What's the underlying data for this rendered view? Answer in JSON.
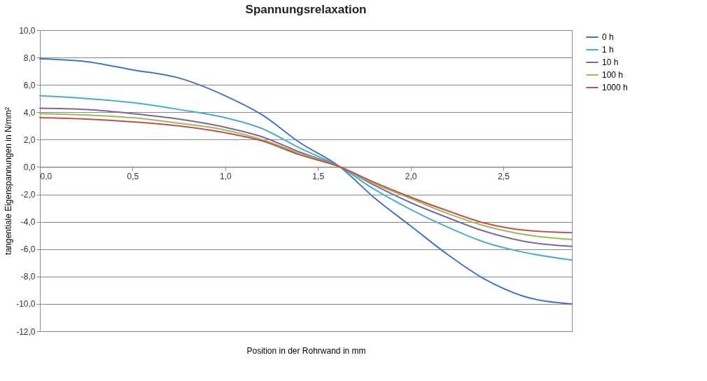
{
  "chart_data": {
    "type": "line",
    "title": "Spannungsrelaxation",
    "xlabel": "Position in der Rohrwand  in mm",
    "ylabel": "tangentiale Eigenspannungen  in N/mm²",
    "x": [
      0,
      0.25,
      0.5,
      0.75,
      1.0,
      1.2,
      1.4,
      1.62,
      1.8,
      2.0,
      2.2,
      2.4,
      2.6,
      2.87
    ],
    "series": [
      {
        "name": "0 h",
        "color": "#4472c4",
        "values": [
          7.9,
          7.7,
          7.1,
          6.5,
          5.2,
          3.8,
          1.8,
          0,
          -2.2,
          -4.3,
          -6.4,
          -8.2,
          -9.4,
          -10.0
        ]
      },
      {
        "name": "1 h",
        "color": "#4bacc6",
        "values": [
          5.2,
          5.0,
          4.7,
          4.2,
          3.6,
          2.8,
          1.4,
          0,
          -1.6,
          -3.1,
          -4.4,
          -5.5,
          -6.2,
          -6.8
        ]
      },
      {
        "name": "10 h",
        "color": "#8064a2",
        "values": [
          4.3,
          4.2,
          3.9,
          3.5,
          2.9,
          2.2,
          1.1,
          0,
          -1.3,
          -2.6,
          -3.7,
          -4.7,
          -5.4,
          -5.8
        ]
      },
      {
        "name": "100 h",
        "color": "#9bbb59",
        "values": [
          3.9,
          3.8,
          3.6,
          3.2,
          2.7,
          2.0,
          1.0,
          0,
          -1.2,
          -2.3,
          -3.4,
          -4.3,
          -4.9,
          -5.3
        ]
      },
      {
        "name": "1000 h",
        "color": "#c0504d",
        "values": [
          3.6,
          3.5,
          3.3,
          3.0,
          2.5,
          1.9,
          0.9,
          0,
          -1.1,
          -2.2,
          -3.2,
          -4.1,
          -4.6,
          -4.8
        ]
      }
    ],
    "xlim": [
      0,
      2.87
    ],
    "xticks": [
      {
        "value": 0,
        "label": "0,0"
      },
      {
        "value": 0.5,
        "label": "0,5"
      },
      {
        "value": 1,
        "label": "1,0"
      },
      {
        "value": 1.5,
        "label": "1,5"
      },
      {
        "value": 2,
        "label": "2,0"
      },
      {
        "value": 2.5,
        "label": "2,5"
      }
    ],
    "ylim": [
      -12,
      10
    ],
    "yticks": [
      {
        "value": -12,
        "label": "-12,0"
      },
      {
        "value": -10,
        "label": "-10,0"
      },
      {
        "value": -8,
        "label": "-8,0"
      },
      {
        "value": -6,
        "label": "-6,0"
      },
      {
        "value": -4,
        "label": "-4,0"
      },
      {
        "value": -2,
        "label": "-2,0"
      },
      {
        "value": 0,
        "label": "0,0"
      },
      {
        "value": 2,
        "label": "2,0"
      },
      {
        "value": 4,
        "label": "4,0"
      },
      {
        "value": 6,
        "label": "6,0"
      },
      {
        "value": 8,
        "label": "8,0"
      },
      {
        "value": 10,
        "label": "10,0"
      }
    ],
    "grid": "y",
    "legend": "right",
    "line_style": "solid"
  }
}
